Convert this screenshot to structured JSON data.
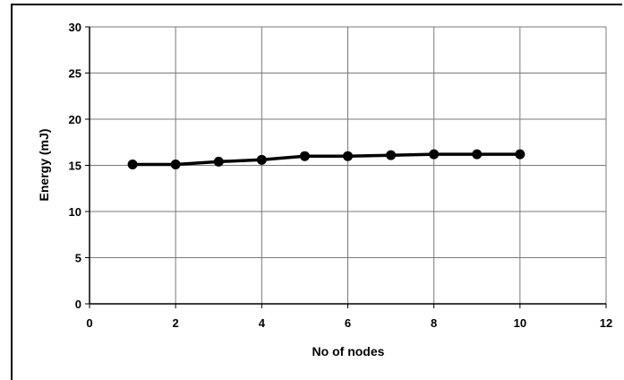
{
  "chart_data": {
    "type": "line",
    "title": "",
    "xlabel": "No of nodes",
    "ylabel": "Energy (mJ)",
    "xlim": [
      0,
      12
    ],
    "ylim": [
      0,
      30
    ],
    "xticks": [
      0,
      2,
      4,
      6,
      8,
      10,
      12
    ],
    "yticks": [
      0,
      5,
      10,
      15,
      20,
      25,
      30
    ],
    "grid": true,
    "legend": "none",
    "series": [
      {
        "x": [
          1,
          2,
          3,
          4,
          5,
          6,
          7,
          8,
          9,
          10
        ],
        "y": [
          15.1,
          15.1,
          15.4,
          15.6,
          16.0,
          16.0,
          16.1,
          16.2,
          16.2,
          16.2
        ],
        "color": "#000000",
        "marker": "circle"
      }
    ]
  }
}
